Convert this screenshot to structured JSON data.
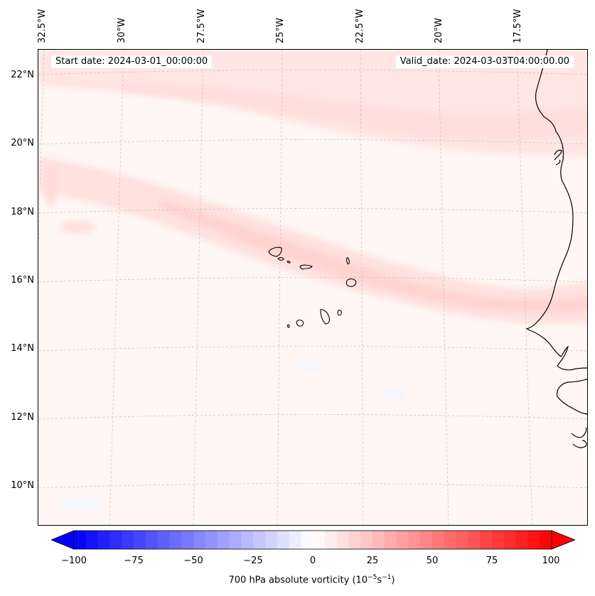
{
  "header": {
    "start_date": "Start date: 2024-03-01_00:00:00",
    "valid_date": "Valid_date: 2024-03-03T04:00:00.00"
  },
  "map": {
    "projection": "lambert-conformal",
    "extent": {
      "lon_min": -33.0,
      "lon_max": -16.0,
      "lat_min": 9.0,
      "lat_max": 22.5
    },
    "latitude_labels": [
      "22°N",
      "20°N",
      "18°N",
      "16°N",
      "14°N",
      "12°N",
      "10°N"
    ],
    "longitude_labels": [
      "32.5°W",
      "30°W",
      "27.5°W",
      "25°W",
      "22.5°W",
      "20°W",
      "17.5°W"
    ],
    "gridlines": true,
    "coastline_color": "#000000",
    "field": "700 hPa absolute vorticity",
    "field_summary": "weakly positive vorticity band oriented WNW-ESE through Cape Verde islands (approx. 10-20 x10^-5 s^-1); values near 0-5 elsewhere"
  },
  "colorbar": {
    "label_text": "700 hPa absolute vorticity (10",
    "label_exp1": "−5",
    "label_mid": "s",
    "label_exp2": "−1",
    "label_end": ")",
    "ticks": [
      "−100",
      "−75",
      "−50",
      "−25",
      "0",
      "25",
      "50",
      "75",
      "100"
    ],
    "vmin": -100,
    "vmax": 100,
    "colormap": "bwr",
    "extend": "both",
    "low_color": "#0000ff",
    "mid_color": "#ffffff",
    "high_color": "#ff0000"
  }
}
